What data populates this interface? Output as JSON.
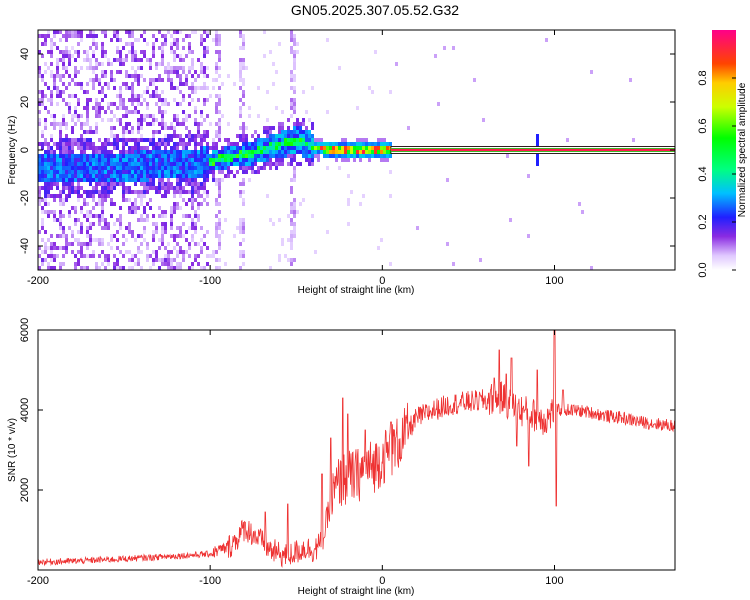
{
  "title": "GN05.2025.307.05.52.G32",
  "chart_data": [
    {
      "type": "heatmap",
      "xlabel": "Height of straight line (km)",
      "ylabel": "Frequency (Hz)",
      "xlim": [
        -200,
        170
      ],
      "ylim": [
        -50,
        50
      ],
      "xticks": [
        "-200",
        "-100",
        "0",
        "100"
      ],
      "xtick_values": [
        -200,
        -100,
        0,
        100
      ],
      "yticks": [
        "-40",
        "-20",
        "0",
        "20",
        "40"
      ],
      "ytick_values": [
        -40,
        -20,
        0,
        20,
        40
      ],
      "colorbar": {
        "label": "Normalized spectral amplitude",
        "range": [
          0,
          1
        ],
        "ticks": [
          "0.0",
          "0.2",
          "0.4",
          "0.6",
          "0.8"
        ],
        "tick_values": [
          0.0,
          0.2,
          0.4,
          0.6,
          0.8
        ]
      },
      "ridge": {
        "x": [
          -200,
          -150,
          -120,
          -100,
          -90,
          -80,
          -70,
          -60,
          -50,
          -45,
          -40,
          -30,
          -20,
          -10,
          0,
          10,
          50,
          100,
          170
        ],
        "freq": [
          -8,
          -7,
          -6,
          -5,
          -3,
          -2,
          0,
          2,
          4,
          3,
          1,
          0,
          0,
          0,
          0,
          0,
          0,
          0,
          0
        ]
      }
    },
    {
      "type": "line",
      "xlabel": "Height of straight line (km)",
      "ylabel": "SNR (10 * v/v)",
      "xlim": [
        -200,
        170
      ],
      "ylim": [
        0,
        6000
      ],
      "xticks": [
        "-200",
        "-100",
        "0",
        "100"
      ],
      "xtick_values": [
        -200,
        -100,
        0,
        100
      ],
      "yticks": [
        "2000",
        "4000",
        "6000"
      ],
      "ytick_values": [
        2000,
        4000,
        6000
      ],
      "series": [
        {
          "name": "SNR",
          "color": "#ee3333",
          "x": [
            -200,
            -180,
            -160,
            -140,
            -120,
            -100,
            -95,
            -90,
            -85,
            -80,
            -75,
            -70,
            -65,
            -60,
            -55,
            -50,
            -45,
            -40,
            -35,
            -30,
            -25,
            -20,
            -15,
            -10,
            -5,
            0,
            5,
            10,
            15,
            20,
            25,
            30,
            40,
            50,
            60,
            70,
            75,
            80,
            90,
            95,
            100,
            110,
            120,
            130,
            140,
            150,
            160,
            170
          ],
          "values": [
            200,
            220,
            260,
            300,
            350,
            400,
            500,
            550,
            750,
            1050,
            900,
            700,
            500,
            400,
            350,
            450,
            550,
            500,
            650,
            1700,
            2200,
            2300,
            2350,
            2500,
            2600,
            2800,
            3000,
            3200,
            3500,
            3800,
            3900,
            4000,
            4150,
            4200,
            4250,
            4300,
            4100,
            4000,
            3850,
            3750,
            4000,
            4000,
            3950,
            3850,
            3800,
            3700,
            3650,
            3600
          ]
        }
      ],
      "spikes": {
        "x": [
          -68,
          -55,
          -35,
          -30,
          -23,
          -20,
          -10,
          5,
          65,
          68,
          72,
          75,
          78,
          85,
          90,
          100,
          101,
          105
        ],
        "values": [
          1450,
          1650,
          2400,
          3300,
          4300,
          3900,
          3500,
          3700,
          4800,
          5500,
          4900,
          5300,
          3100,
          2600,
          5000,
          6100,
          1600,
          4500
        ]
      }
    }
  ]
}
